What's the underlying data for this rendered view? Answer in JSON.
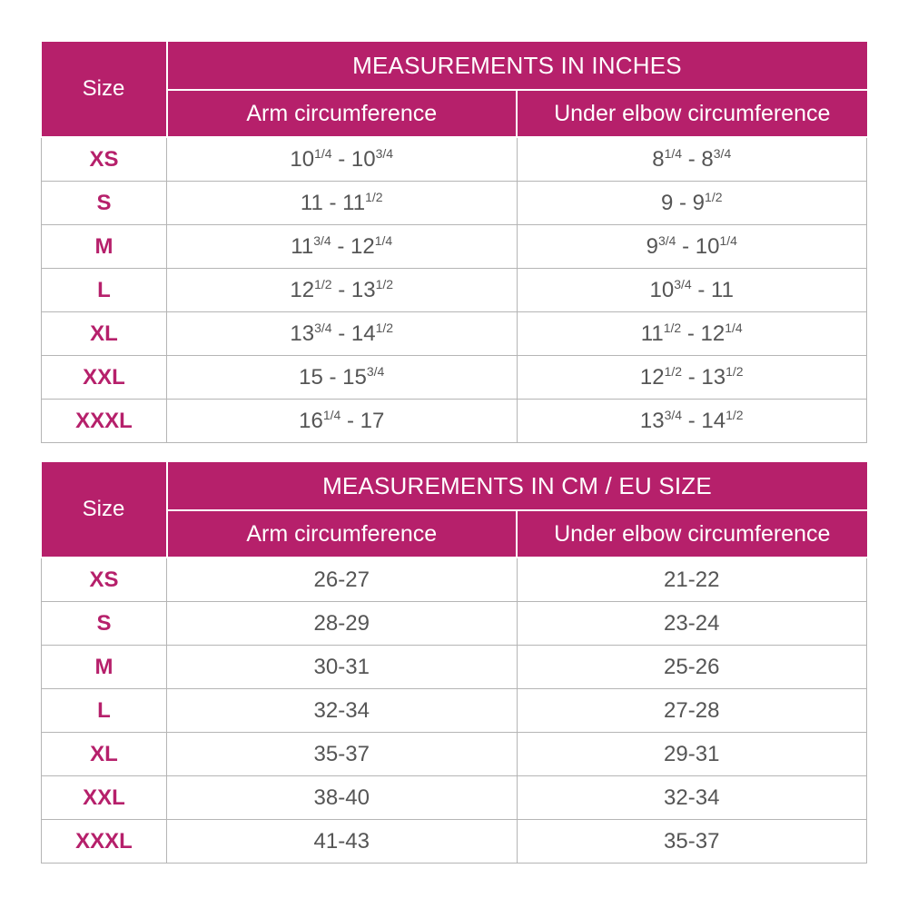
{
  "colors": {
    "header_bg": "#b6206b",
    "size_text": "#b6206b",
    "value_text": "#555555",
    "grid": "#b5b5b5"
  },
  "inches_table": {
    "size_label": "Size",
    "title": "MEASUREMENTS IN INCHES",
    "col_arm": "Arm circumference",
    "col_elbow": "Under elbow circumference",
    "rows": [
      {
        "size": "XS",
        "arm": {
          "a": "10",
          "as": "1/4",
          "sep": " - ",
          "b": "10",
          "bs": "3/4"
        },
        "elbow": {
          "a": "8",
          "as": "1/4",
          "sep": " - ",
          "b": "8",
          "bs": "3/4"
        }
      },
      {
        "size": "S",
        "arm": {
          "a": "11",
          "as": "",
          "sep": " - ",
          "b": "11",
          "bs": "1/2"
        },
        "elbow": {
          "a": "9",
          "as": "",
          "sep": " - ",
          "b": "9",
          "bs": "1/2"
        }
      },
      {
        "size": "M",
        "arm": {
          "a": "11",
          "as": "3/4",
          "sep": " - ",
          "b": "12",
          "bs": "1/4"
        },
        "elbow": {
          "a": "9",
          "as": "3/4",
          "sep": " - ",
          "b": "10",
          "bs": "1/4"
        }
      },
      {
        "size": "L",
        "arm": {
          "a": "12",
          "as": "1/2",
          "sep": " - ",
          "b": "13",
          "bs": "1/2"
        },
        "elbow": {
          "a": "10",
          "as": "3/4",
          "sep": " - ",
          "b": "11",
          "bs": ""
        }
      },
      {
        "size": "XL",
        "arm": {
          "a": "13",
          "as": "3/4",
          "sep": " - ",
          "b": "14",
          "bs": "1/2"
        },
        "elbow": {
          "a": "11",
          "as": "1/2",
          "sep": " - ",
          "b": "12",
          "bs": "1/4"
        }
      },
      {
        "size": "XXL",
        "arm": {
          "a": "15",
          "as": "",
          "sep": " - ",
          "b": "15",
          "bs": "3/4"
        },
        "elbow": {
          "a": "12",
          "as": "1/2",
          "sep": " - ",
          "b": "13",
          "bs": "1/2"
        }
      },
      {
        "size": "XXXL",
        "arm": {
          "a": "16",
          "as": "1/4",
          "sep": " - ",
          "b": "17",
          "bs": ""
        },
        "elbow": {
          "a": "13",
          "as": "3/4",
          "sep": " - ",
          "b": "14",
          "bs": "1/2"
        }
      }
    ]
  },
  "cm_table": {
    "size_label": "Size",
    "title": "MEASUREMENTS IN CM / EU SIZE",
    "col_arm": "Arm circumference",
    "col_elbow": "Under elbow circumference",
    "rows": [
      {
        "size": "XS",
        "arm": "26-27",
        "elbow": "21-22"
      },
      {
        "size": "S",
        "arm": "28-29",
        "elbow": "23-24"
      },
      {
        "size": "M",
        "arm": "30-31",
        "elbow": "25-26"
      },
      {
        "size": "L",
        "arm": "32-34",
        "elbow": "27-28"
      },
      {
        "size": "XL",
        "arm": "35-37",
        "elbow": "29-31"
      },
      {
        "size": "XXL",
        "arm": "38-40",
        "elbow": "32-34"
      },
      {
        "size": "XXXL",
        "arm": "41-43",
        "elbow": "35-37"
      }
    ]
  }
}
